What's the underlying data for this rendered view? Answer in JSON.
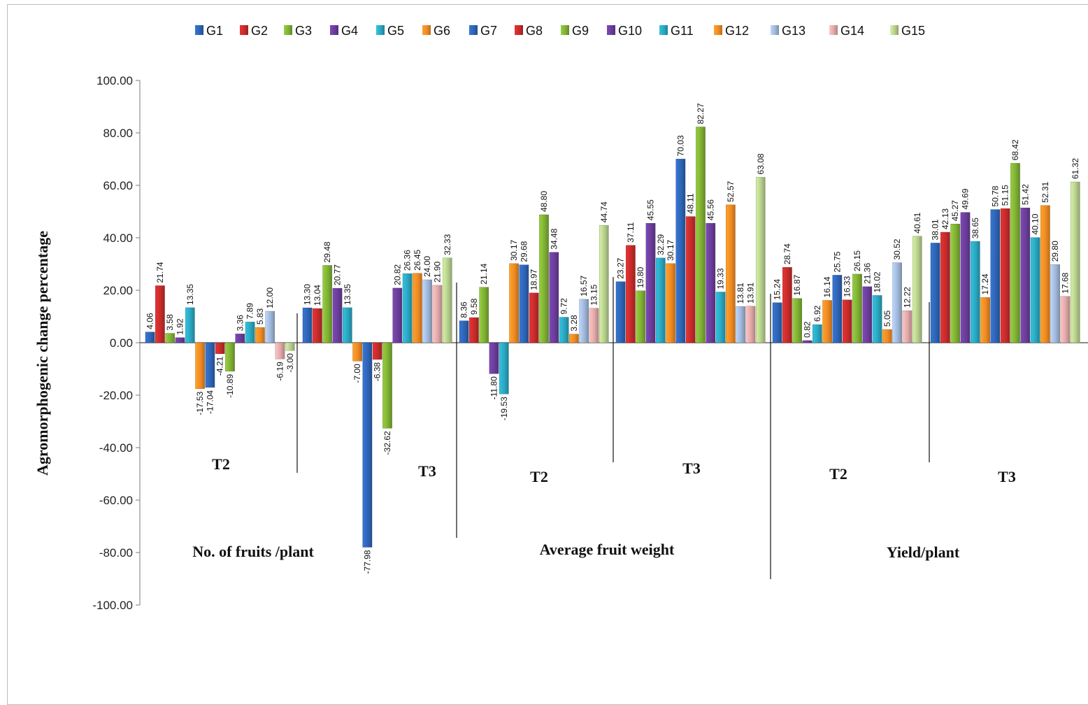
{
  "chart_data": {
    "type": "bar",
    "title": "",
    "xlabel": "",
    "ylabel": "Agromorphogenic change percentage",
    "ylim": [
      -100,
      100
    ],
    "y_ticks": [
      "100.00",
      "80.00",
      "60.00",
      "40.00",
      "20.00",
      "0.00",
      "-20.00",
      "-40.00",
      "-60.00",
      "-80.00",
      "-100.00"
    ],
    "y_tick_values": [
      100,
      80,
      60,
      40,
      20,
      0,
      -20,
      -40,
      -60,
      -80,
      -100
    ],
    "legend_position": "top",
    "grid": false,
    "series_names": [
      "G1",
      "G2",
      "G3",
      "G4",
      "G5",
      "G6",
      "G7",
      "G8",
      "G9",
      "G10",
      "G11",
      "G12",
      "G13",
      "G14",
      "G15"
    ],
    "series_colors": [
      "#2e64b5",
      "#c62b2b",
      "#7fb034",
      "#6a3d9a",
      "#2aa6bf",
      "#ef8a23",
      "#2e64b5",
      "#c62b2b",
      "#7fb034",
      "#6a3d9a",
      "#2aa6bf",
      "#ef8a23",
      "#9fb6d8",
      "#e0a7a7",
      "#b6cf8c"
    ],
    "traits": [
      {
        "name": "No. of fruits /plant",
        "treatments": [
          "T2",
          "T3"
        ]
      },
      {
        "name": "Average fruit weight",
        "treatments": [
          "T2",
          "T3"
        ]
      },
      {
        "name": "Yield/plant",
        "treatments": [
          "T2",
          "T3"
        ]
      }
    ],
    "groups": [
      {
        "trait": "No. of fruits /plant",
        "treatment": "T2",
        "values": [
          4.06,
          21.74,
          3.58,
          1.92,
          13.35,
          -17.53,
          -17.04,
          -4.21,
          -10.89,
          3.36,
          7.89,
          5.83,
          12.0,
          -6.19,
          -3.0
        ]
      },
      {
        "trait": "No. of fruits /plant",
        "treatment": "T3",
        "values": [
          13.3,
          13.04,
          29.48,
          20.77,
          13.35,
          -7.0,
          -77.98,
          -6.38,
          -32.62,
          20.82,
          26.36,
          26.45,
          24.0,
          21.9,
          32.33
        ]
      },
      {
        "trait": "Average fruit weight",
        "treatment": "T2",
        "values": [
          8.36,
          9.58,
          21.14,
          -11.8,
          -19.53,
          30.17,
          29.68,
          18.97,
          48.8,
          34.48,
          9.72,
          3.28,
          16.57,
          13.15,
          44.74
        ]
      },
      {
        "trait": "Average fruit weight",
        "treatment": "T3",
        "values": [
          23.27,
          37.11,
          19.8,
          45.55,
          32.29,
          30.17,
          70.03,
          48.11,
          82.27,
          45.56,
          19.33,
          52.57,
          13.81,
          13.91,
          63.08
        ]
      },
      {
        "trait": "Yield/plant",
        "treatment": "T2",
        "values": [
          15.24,
          28.74,
          16.87,
          0.82,
          6.92,
          16.14,
          25.75,
          16.33,
          26.15,
          21.36,
          18.02,
          5.05,
          30.52,
          12.22,
          40.61
        ]
      },
      {
        "trait": "Yield/plant",
        "treatment": "T3",
        "values": [
          38.01,
          42.13,
          45.27,
          49.69,
          38.65,
          17.24,
          50.78,
          51.15,
          68.42,
          51.42,
          40.1,
          52.31,
          29.8,
          17.68,
          61.32
        ]
      }
    ]
  }
}
